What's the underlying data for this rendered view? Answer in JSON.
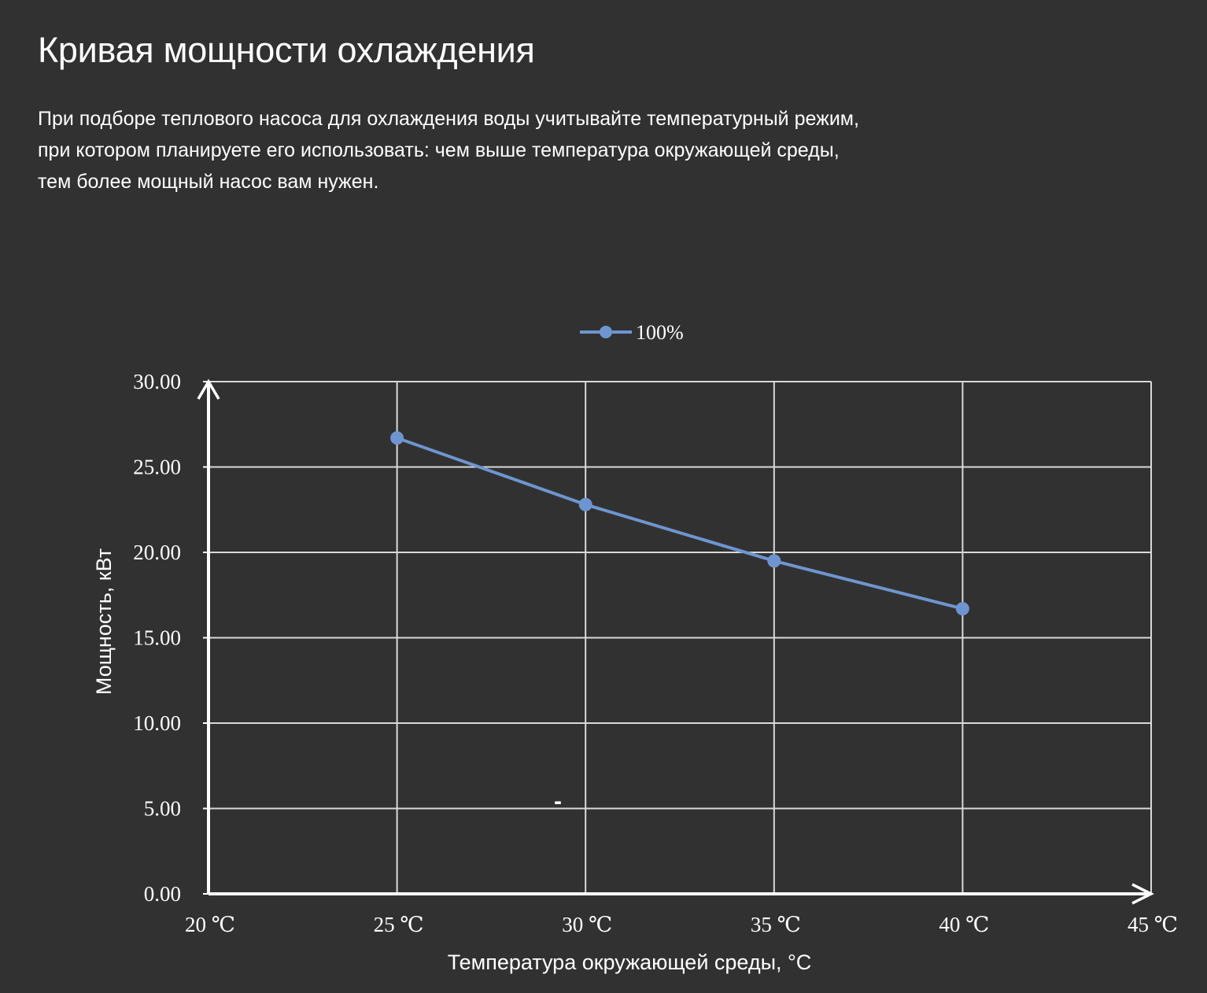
{
  "page": {
    "title": "Кривая мощности охлаждения",
    "description_lines": [
      "При подборе теплового насоса для охлаждения воды учитывайте температурный режим,",
      "при котором планируете его использовать: чем выше температура окружающей среды,",
      "тем более мощный насос вам нужен."
    ]
  },
  "chart_data": {
    "type": "line",
    "title": "",
    "xlabel": "Температура окружающей среды, °C",
    "ylabel": "Мощность, кВт",
    "x_tick_labels": [
      "20 ℃",
      "25 ℃",
      "30 ℃",
      "35 ℃",
      "40 ℃",
      "45 ℃"
    ],
    "y_tick_labels": [
      "0.00",
      "5.00",
      "10.00",
      "15.00",
      "20.00",
      "25.00",
      "30.00"
    ],
    "xlim": [
      20,
      45
    ],
    "ylim": [
      0,
      30
    ],
    "grid": true,
    "legend_position": "top-center",
    "stray_mark": "-",
    "series": [
      {
        "name": "100%",
        "color": "#6e95cf",
        "x": [
          25,
          30,
          35,
          40
        ],
        "values": [
          26.7,
          22.8,
          19.5,
          16.7
        ]
      }
    ]
  }
}
